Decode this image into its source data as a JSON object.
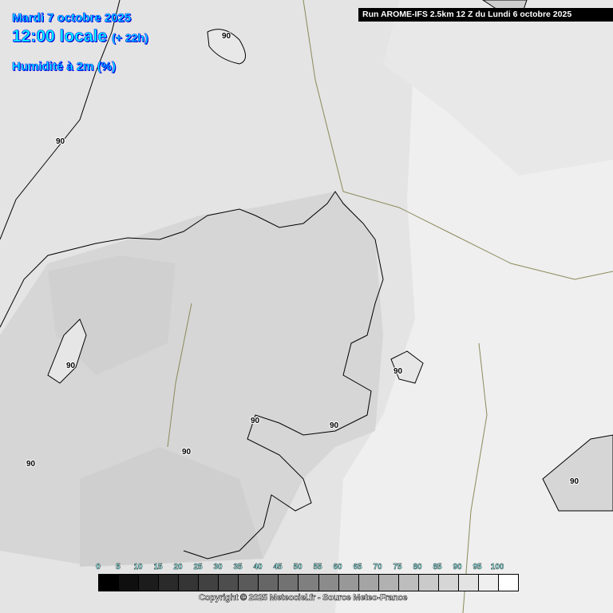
{
  "header": {
    "date": "Mardi 7 octobre 2025",
    "time": "12:00 locale",
    "offset": "(+ 22h)",
    "parameter": "Humidité à 2m (%)",
    "run_info": "Run AROME-IFS 2.5km 12 Z du Lundi 6 octobre 2025"
  },
  "contour_label": "90",
  "legend": {
    "labels": [
      "0",
      "5",
      "10",
      "15",
      "20",
      "25",
      "30",
      "35",
      "40",
      "45",
      "50",
      "55",
      "60",
      "65",
      "70",
      "75",
      "80",
      "85",
      "90",
      "95",
      "100"
    ],
    "colors": [
      "#000000",
      "#0f0f0f",
      "#1c1c1c",
      "#2a2a2a",
      "#353535",
      "#414141",
      "#4d4d4d",
      "#5a5a5a",
      "#666666",
      "#727272",
      "#7f7f7f",
      "#8b8b8b",
      "#989898",
      "#a4a4a4",
      "#b1b1b1",
      "#bdbdbd",
      "#cacaca",
      "#d6d6d6",
      "#e3e3e3",
      "#efefef",
      "#ffffff"
    ]
  },
  "copyright": "Copyright © 2025 Meteociel.fr - Source Meteo-France"
}
